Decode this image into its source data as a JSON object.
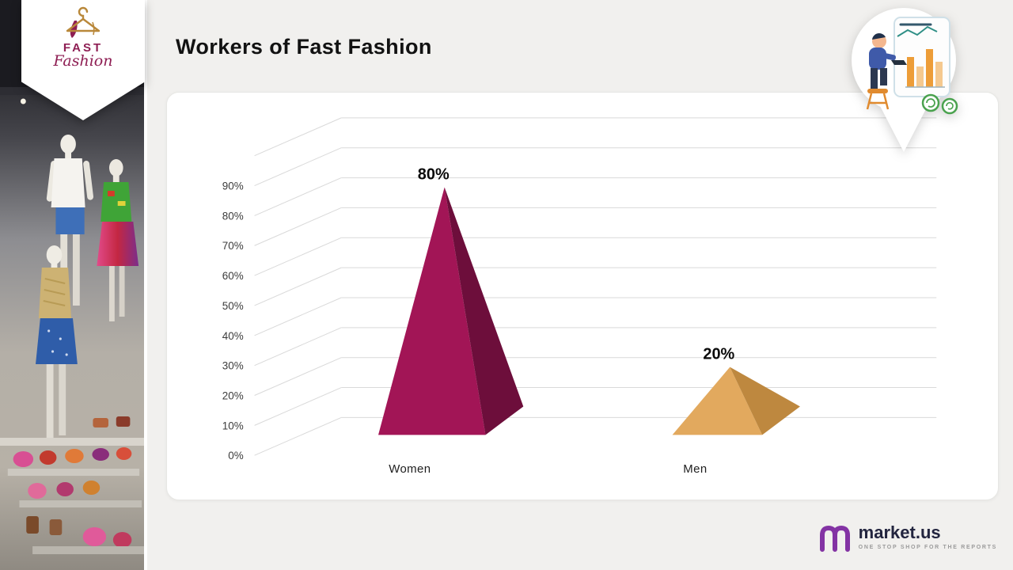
{
  "page": {
    "title": "Workers of Fast Fashion",
    "background": "#f1f0ee"
  },
  "brand_badge": {
    "line1": "FAST",
    "line2": "Fashion",
    "maroon": "#8e1e53",
    "gold": "#b9883a"
  },
  "chart_data": {
    "type": "bar",
    "subtype": "3d-pyramid",
    "title": "Workers of Fast Fashion",
    "categories": [
      "Women",
      "Men"
    ],
    "values": [
      80,
      20
    ],
    "value_labels": [
      "80%",
      "20%"
    ],
    "yticks": [
      "0%",
      "10%",
      "20%",
      "30%",
      "40%",
      "50%",
      "60%",
      "70%",
      "80%",
      "90%"
    ],
    "ylim": [
      0,
      100
    ],
    "xlabel": "",
    "ylabel": "",
    "grid": true,
    "legend": false,
    "grid_color": "#d9d9d9",
    "series_colors": [
      {
        "front": "#A21556",
        "side": "#6D0E3B"
      },
      {
        "front": "#E2A95E",
        "side": "#BE883F"
      }
    ]
  },
  "footer_brand": {
    "name": "market.us",
    "tagline": "ONE STOP SHOP FOR THE REPORTS",
    "logo_color": "#8333a4"
  }
}
